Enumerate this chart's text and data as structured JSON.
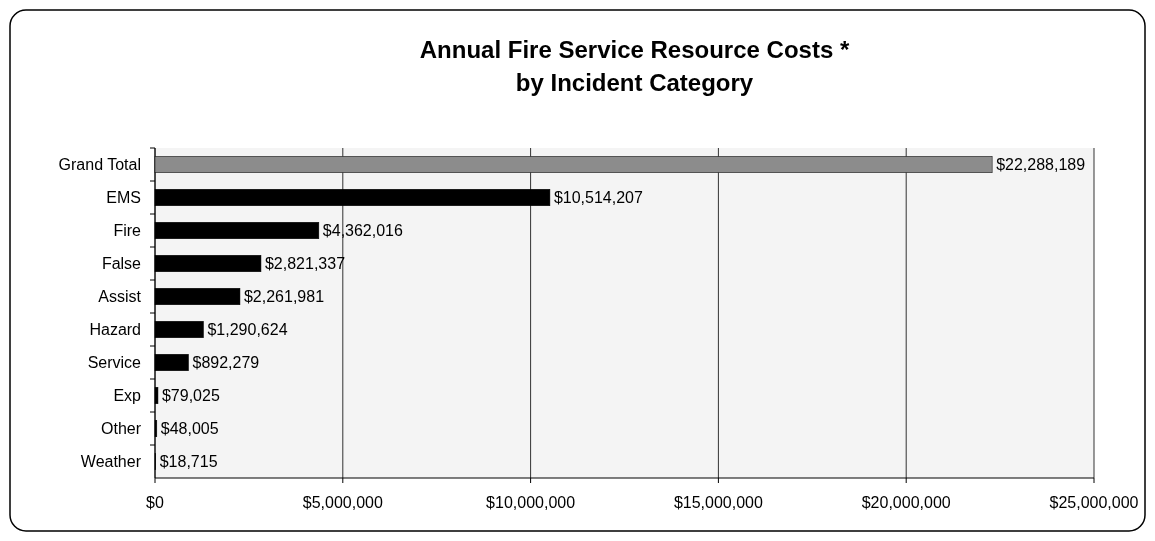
{
  "chart_data": {
    "type": "bar",
    "orientation": "horizontal",
    "title": "Annual Fire Service Resource Costs *\nby Incident Category",
    "categories": [
      "Grand Total",
      "EMS",
      "Fire",
      "False",
      "Assist",
      "Hazard",
      "Service",
      "Exp",
      "Other",
      "Weather"
    ],
    "values": [
      22288189,
      10514207,
      4362016,
      2821337,
      2261981,
      1290624,
      892279,
      79025,
      48005,
      18715
    ],
    "colors": [
      "#8c8c8c",
      "#000000",
      "#000000",
      "#000000",
      "#000000",
      "#000000",
      "#000000",
      "#000000",
      "#000000",
      "#000000"
    ],
    "value_labels": [
      "$22,288,189",
      "$10,514,207",
      "$4,362,016",
      "$2,821,337",
      "$2,261,981",
      "$1,290,624",
      "$892,279",
      "$79,025",
      "$48,005",
      "$18,715"
    ],
    "xlim": [
      0,
      25000000
    ],
    "xticks": [
      {
        "value": 0,
        "label": "$0"
      },
      {
        "value": 5000000,
        "label": "$5,000,000"
      },
      {
        "value": 10000000,
        "label": "$10,000,000"
      },
      {
        "value": 15000000,
        "label": "$15,000,000"
      },
      {
        "value": 20000000,
        "label": "$20,000,000"
      },
      {
        "value": 25000000,
        "label": "$25,000,000"
      }
    ],
    "grid": "x"
  }
}
